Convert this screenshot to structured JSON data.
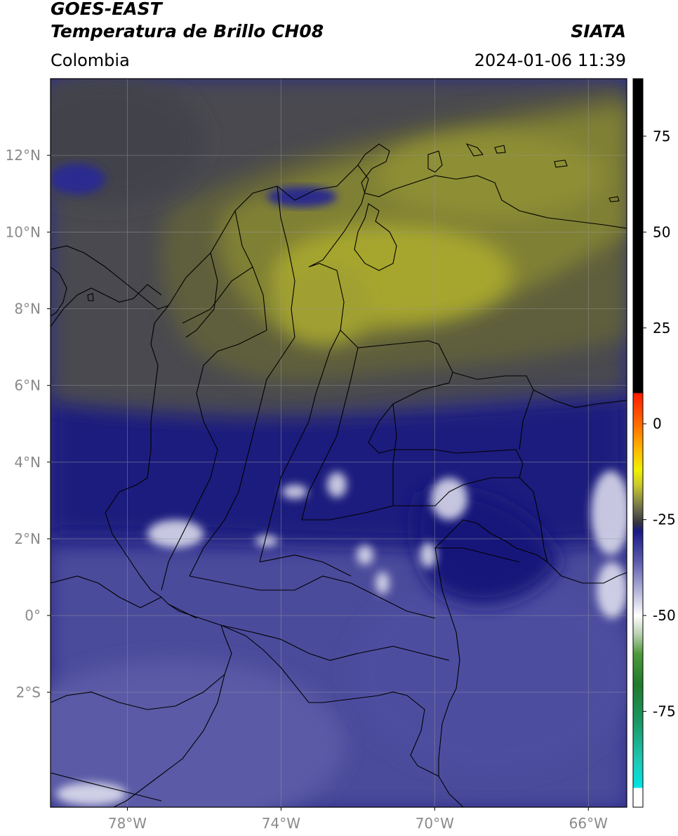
{
  "header": {
    "satellite": "GOES-EAST",
    "product": "Temperatura de Brillo CH08",
    "brand": "SIATA",
    "region": "Colombia",
    "datetime": "2024-01-06 11:39"
  },
  "map": {
    "lon_range": [
      -80,
      -65
    ],
    "lat_range": [
      -5,
      14
    ],
    "lon_ticks": [
      {
        "value": -78,
        "label": "78°W"
      },
      {
        "value": -74,
        "label": "74°W"
      },
      {
        "value": -70,
        "label": "70°W"
      },
      {
        "value": -66,
        "label": "66°W"
      }
    ],
    "lat_ticks": [
      {
        "value": 12,
        "label": "12°N"
      },
      {
        "value": 10,
        "label": "10°N"
      },
      {
        "value": 8,
        "label": "8°N"
      },
      {
        "value": 6,
        "label": "6°N"
      },
      {
        "value": 4,
        "label": "4°N"
      },
      {
        "value": 2,
        "label": "2°N"
      },
      {
        "value": 0,
        "label": "0°"
      },
      {
        "value": -2,
        "label": "2°S"
      }
    ],
    "gridlines": true,
    "colors": {
      "warm_olive": "#a6a62e",
      "olive_gray": "#55553e",
      "dark_gray": "#46464c",
      "navy": "#1c1c80",
      "slate_blue": "#4a4a98",
      "white_cloud": "#e8e8f4",
      "border": "#000000"
    }
  },
  "colorbar": {
    "range": [
      -100,
      90
    ],
    "ticks": [
      {
        "value": 75,
        "label": "75"
      },
      {
        "value": 50,
        "label": "50"
      },
      {
        "value": 25,
        "label": "25"
      },
      {
        "value": 0,
        "label": "0"
      },
      {
        "value": -25,
        "label": "-25"
      },
      {
        "value": -50,
        "label": "-50"
      },
      {
        "value": -75,
        "label": "-75"
      }
    ],
    "stops": [
      {
        "value": -100,
        "color": "#ffffff"
      },
      {
        "value": -95,
        "color": "#ffffff"
      },
      {
        "value": -95,
        "color": "#00e5e5"
      },
      {
        "value": -88,
        "color": "#1fc8b5"
      },
      {
        "value": -78,
        "color": "#1a9968"
      },
      {
        "value": -68,
        "color": "#217a2c"
      },
      {
        "value": -60,
        "color": "#4f9a3a"
      },
      {
        "value": -55,
        "color": "#b8d0b0"
      },
      {
        "value": -50,
        "color": "#ffffff"
      },
      {
        "value": -44,
        "color": "#b8b8dc"
      },
      {
        "value": -36,
        "color": "#5c5cae"
      },
      {
        "value": -28,
        "color": "#1a1a86"
      },
      {
        "value": -26,
        "color": "#33333d"
      },
      {
        "value": -22,
        "color": "#6e6e4c"
      },
      {
        "value": -16,
        "color": "#c9c92c"
      },
      {
        "value": -12,
        "color": "#f0f000"
      },
      {
        "value": -6,
        "color": "#ffb000"
      },
      {
        "value": 0,
        "color": "#ff6a00"
      },
      {
        "value": 8,
        "color": "#ff1a00"
      },
      {
        "value": 8,
        "color": "#000000"
      },
      {
        "value": 90,
        "color": "#000000"
      }
    ]
  }
}
